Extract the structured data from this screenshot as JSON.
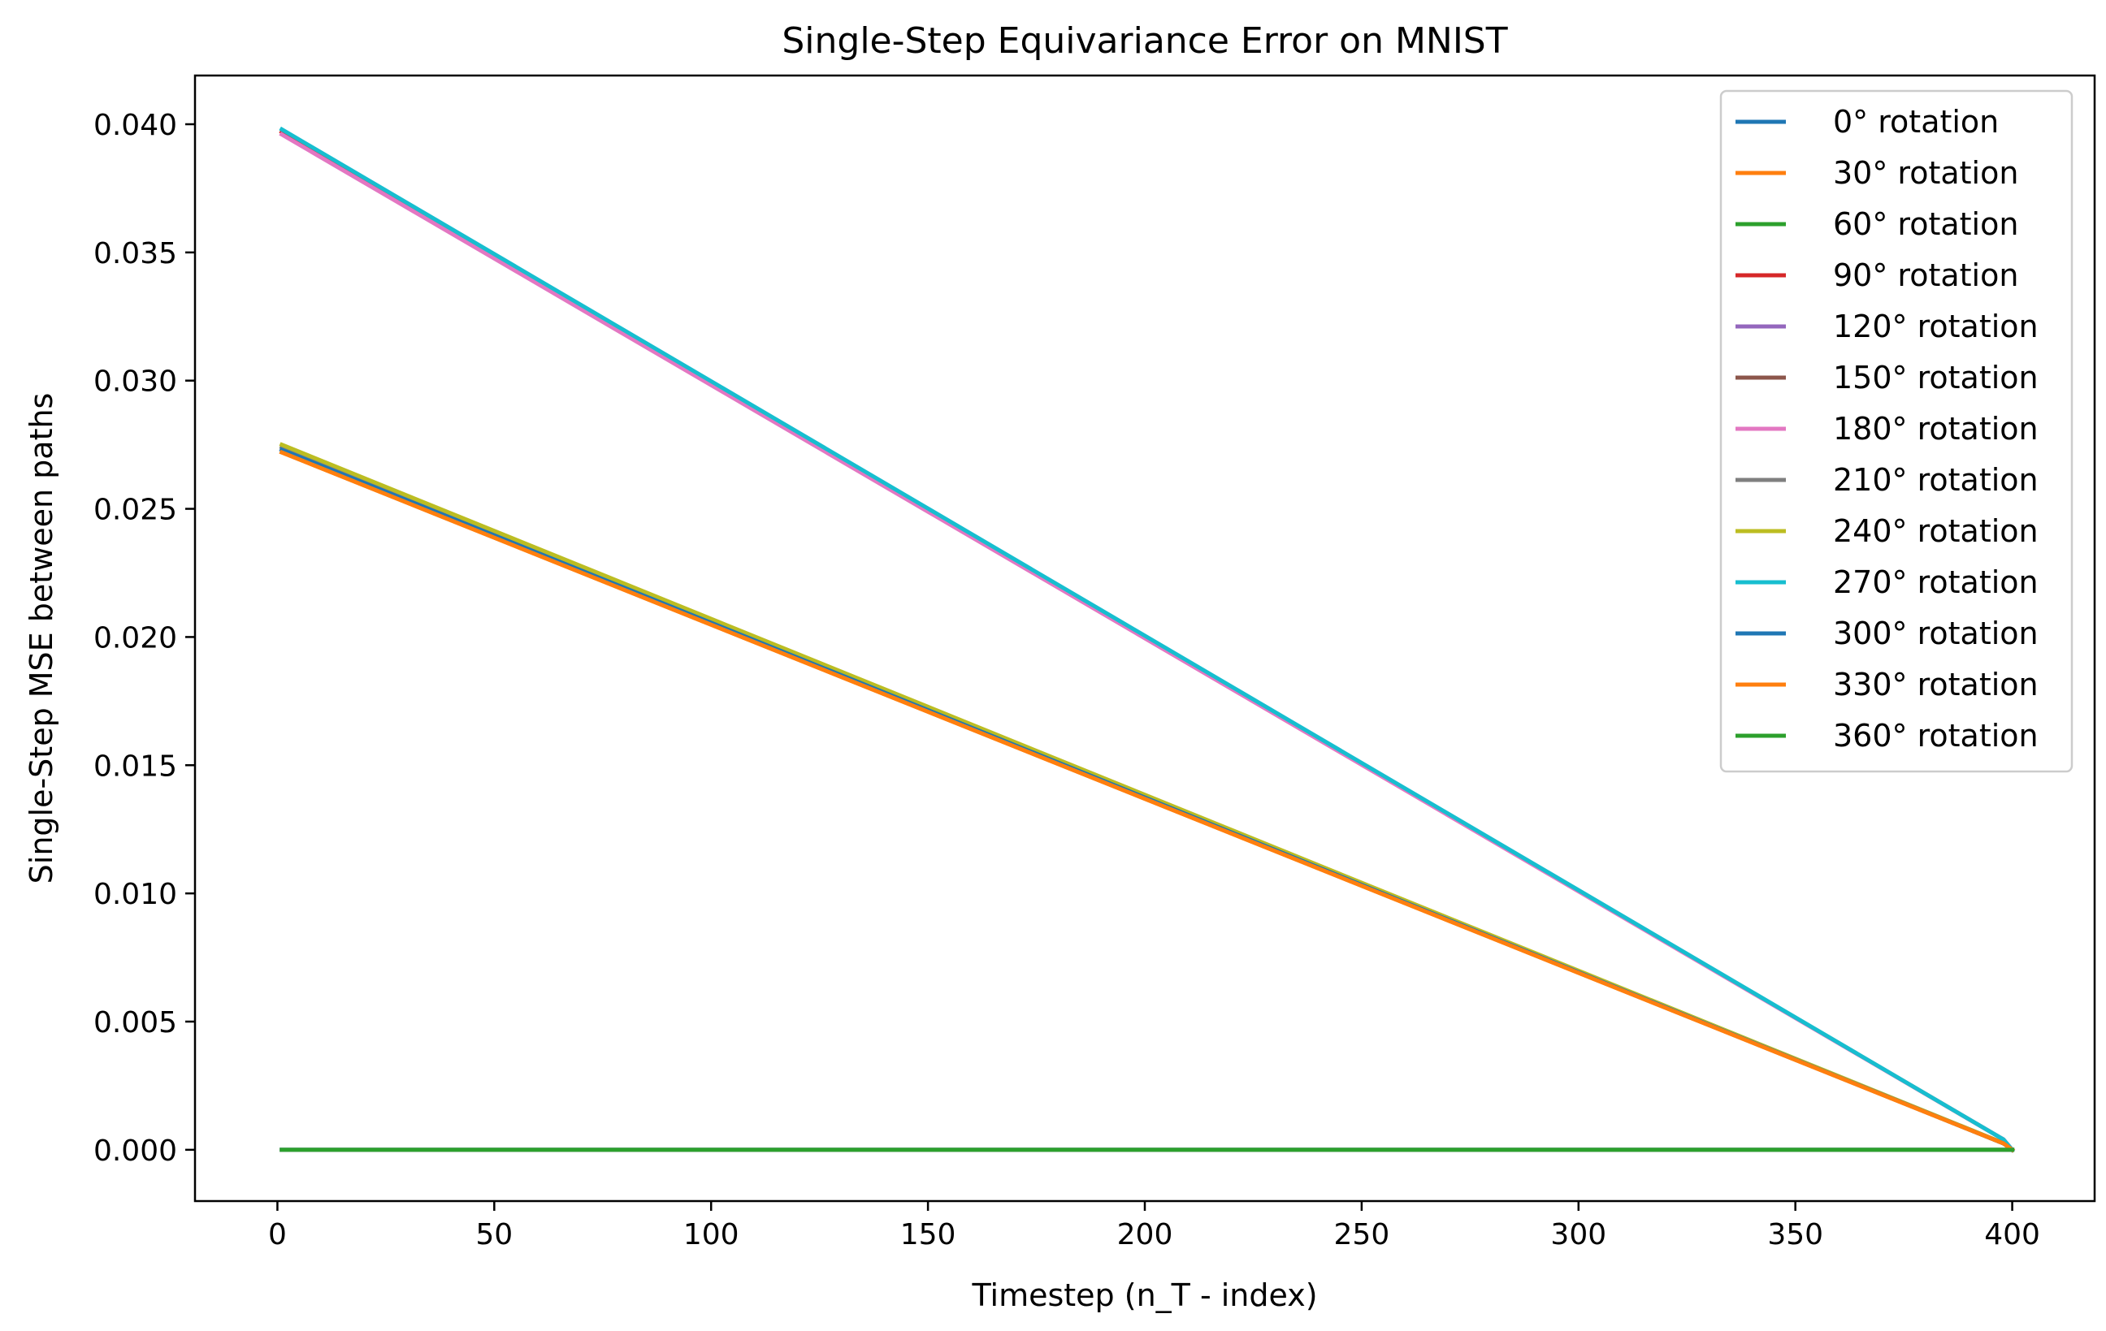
{
  "chart_data": {
    "type": "line",
    "title": "Single-Step Equivariance Error on MNIST",
    "xlabel": "Timestep (n_T - index)",
    "ylabel": "Single-Step MSE between paths",
    "xlim": [
      -19,
      419
    ],
    "ylim": [
      -0.002,
      0.0419
    ],
    "xticks": [
      0,
      50,
      100,
      150,
      200,
      250,
      300,
      350,
      400
    ],
    "xtick_labels": [
      "0",
      "50",
      "100",
      "150",
      "200",
      "250",
      "300",
      "350",
      "400"
    ],
    "yticks": [
      0.0,
      0.005,
      0.01,
      0.015,
      0.02,
      0.025,
      0.03,
      0.035,
      0.04
    ],
    "ytick_labels": [
      "0.000",
      "0.005",
      "0.010",
      "0.015",
      "0.020",
      "0.025",
      "0.030",
      "0.035",
      "0.040"
    ],
    "grid": false,
    "legend_position": "top-right",
    "series": [
      {
        "name": "0° rotation",
        "color": "#1f77b4",
        "x": [
          1,
          398,
          400
        ],
        "y": [
          0.0,
          0.0,
          0.0
        ]
      },
      {
        "name": "30° rotation",
        "color": "#ff7f0e",
        "x": [
          1,
          398,
          400
        ],
        "y": [
          0.0272,
          0.00025,
          0.0
        ]
      },
      {
        "name": "60° rotation",
        "color": "#2ca02c",
        "x": [
          1,
          398,
          400
        ],
        "y": [
          0.0,
          0.0,
          0.0
        ]
      },
      {
        "name": "90° rotation",
        "color": "#d62728",
        "x": [
          1,
          398,
          400
        ],
        "y": [
          0.0397,
          0.0004,
          0.0
        ]
      },
      {
        "name": "120° rotation",
        "color": "#9467bd",
        "x": [
          1,
          398,
          400
        ],
        "y": [
          0.0,
          0.0,
          0.0
        ]
      },
      {
        "name": "150° rotation",
        "color": "#8c564b",
        "x": [
          1,
          398,
          400
        ],
        "y": [
          0.0273,
          0.00025,
          0.0
        ]
      },
      {
        "name": "180° rotation",
        "color": "#e377c2",
        "x": [
          1,
          398,
          400
        ],
        "y": [
          0.0396,
          0.0004,
          0.0
        ]
      },
      {
        "name": "210° rotation",
        "color": "#7f7f7f",
        "x": [
          1,
          398,
          400
        ],
        "y": [
          0.0274,
          0.00025,
          0.0
        ]
      },
      {
        "name": "240° rotation",
        "color": "#bcbd22",
        "x": [
          1,
          398,
          400
        ],
        "y": [
          0.0275,
          0.00026,
          0.0
        ]
      },
      {
        "name": "270° rotation",
        "color": "#17becf",
        "x": [
          1,
          398,
          400
        ],
        "y": [
          0.0398,
          0.0004,
          0.0
        ]
      },
      {
        "name": "300° rotation",
        "color": "#1f77b4",
        "x": [
          1,
          398,
          400
        ],
        "y": [
          0.0273,
          0.00025,
          0.0
        ]
      },
      {
        "name": "330° rotation",
        "color": "#ff7f0e",
        "x": [
          1,
          398,
          400
        ],
        "y": [
          0.0272,
          0.00025,
          0.0
        ]
      },
      {
        "name": "360° rotation",
        "color": "#2ca02c",
        "x": [
          1,
          398,
          400
        ],
        "y": [
          0.0,
          0.0,
          0.0
        ]
      }
    ]
  }
}
